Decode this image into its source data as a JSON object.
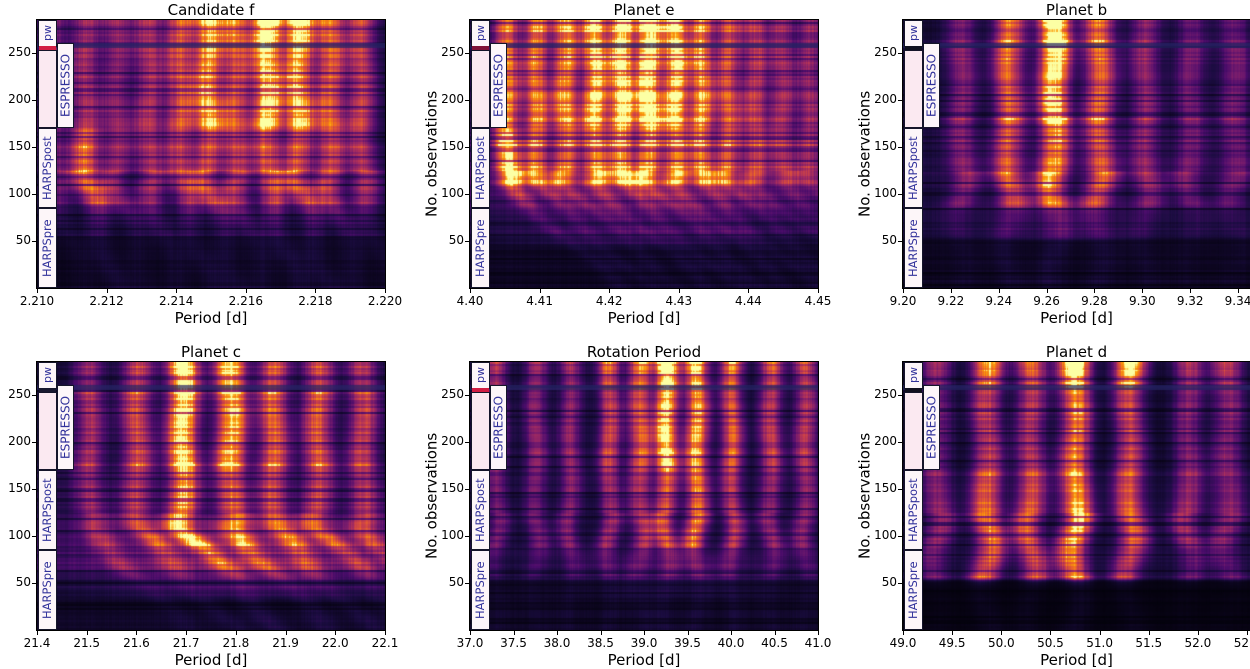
{
  "figure": {
    "ylabel": "No. observations",
    "xlabel": "Period [d]",
    "instrument_labels": [
      "HARPSpre",
      "HARPSpost",
      "ESPRESSO",
      "pw"
    ],
    "colors": {
      "axis_text": "#000000",
      "instrument_text": "#32329b",
      "inset_box_fill": "#fdf6f9",
      "inset_pink_fill": "#fbe9f1",
      "inset_border": "#15152a",
      "red_marker": "#d21e44",
      "divider_row_navy": "#242464",
      "colormap": "inferno"
    }
  },
  "chart_data": [
    {
      "type": "heatmap",
      "title": "Candidate f",
      "xlabel": "Period [d]",
      "ylabel": "No. observations",
      "xlim": [
        2.21,
        2.22
      ],
      "xticks": [
        "2.210",
        "2.212",
        "2.214",
        "2.216",
        "2.218",
        "2.220"
      ],
      "xtick_vals": [
        2.21,
        2.212,
        2.214,
        2.216,
        2.218,
        2.22
      ],
      "yticks": [
        50,
        100,
        150,
        200,
        250
      ],
      "ylim": [
        0,
        285
      ],
      "obs_zone_boundaries": [
        55,
        88,
        170,
        258
      ],
      "zone_base": [
        0.035,
        0.06,
        0.08,
        0.08,
        0.08
      ],
      "sigma": 0.00028,
      "stripes": [
        {
          "p": 2.2105,
          "a": [
            0.1,
            0.2,
            0.22,
            0.2
          ]
        },
        {
          "p": 2.2114,
          "a": [
            0.22,
            0.58,
            0.38,
            0.3
          ]
        },
        {
          "p": 2.2123,
          "a": [
            0.15,
            0.3,
            0.3,
            0.28
          ]
        },
        {
          "p": 2.2132,
          "a": [
            0.18,
            0.34,
            0.4,
            0.34
          ]
        },
        {
          "p": 2.2141,
          "a": [
            0.2,
            0.4,
            0.55,
            0.5
          ]
        },
        {
          "p": 2.2149,
          "a": [
            0.22,
            0.46,
            0.8,
            0.72
          ]
        },
        {
          "p": 2.2157,
          "a": [
            0.2,
            0.42,
            0.56,
            0.6
          ]
        },
        {
          "p": 2.2166,
          "a": [
            0.24,
            0.5,
            0.97,
            1.1
          ]
        },
        {
          "p": 2.2175,
          "a": [
            0.24,
            0.5,
            0.86,
            0.92
          ]
        },
        {
          "p": 2.2184,
          "a": [
            0.2,
            0.45,
            0.6,
            0.55
          ]
        },
        {
          "p": 2.2193,
          "a": [
            0.16,
            0.36,
            0.46,
            0.42
          ]
        }
      ],
      "fade": {
        "below": 80,
        "f": 0.6
      },
      "haze": null,
      "smear": 8e-06,
      "marker_color": "#d21e44",
      "seed": 11
    },
    {
      "type": "heatmap",
      "title": "Planet e",
      "xlabel": "Period [d]",
      "ylabel": "No. observations",
      "xlim": [
        4.4,
        4.45
      ],
      "xticks": [
        "4.40",
        "4.41",
        "4.42",
        "4.43",
        "4.44",
        "4.45"
      ],
      "xtick_vals": [
        4.4,
        4.41,
        4.42,
        4.43,
        4.44,
        4.45
      ],
      "yticks": [
        50,
        100,
        150,
        200,
        250
      ],
      "ylim": [
        0,
        285
      ],
      "obs_zone_boundaries": [
        55,
        88,
        170,
        258
      ],
      "zone_base": [
        0.05,
        0.11,
        0.16,
        0.1,
        0.1
      ],
      "sigma": 0.0012,
      "stripes": [
        {
          "p": 4.4053,
          "a": [
            0.3,
            0.85,
            0.62,
            0.55
          ]
        },
        {
          "p": 4.4095,
          "a": [
            0.28,
            0.6,
            0.66,
            0.62
          ]
        },
        {
          "p": 4.4137,
          "a": [
            0.28,
            0.6,
            0.76,
            0.72
          ]
        },
        {
          "p": 4.4179,
          "a": [
            0.32,
            0.66,
            0.9,
            0.86
          ]
        },
        {
          "p": 4.4218,
          "a": [
            0.32,
            0.7,
            1.0,
            0.96
          ]
        },
        {
          "p": 4.4256,
          "a": [
            0.32,
            0.7,
            1.06,
            1.02
          ]
        },
        {
          "p": 4.4294,
          "a": [
            0.32,
            0.66,
            0.95,
            0.9
          ]
        },
        {
          "p": 4.4332,
          "a": [
            0.28,
            0.6,
            0.72,
            0.62
          ]
        },
        {
          "p": 4.4371,
          "a": [
            0.24,
            0.5,
            0.52,
            0.46
          ]
        },
        {
          "p": 4.441,
          "a": [
            0.2,
            0.4,
            0.42,
            0.36
          ]
        },
        {
          "p": 4.4448,
          "a": [
            0.18,
            0.34,
            0.36,
            0.3
          ]
        },
        {
          "p": 4.4487,
          "a": [
            0.14,
            0.28,
            0.3,
            0.26
          ]
        }
      ],
      "fade": {
        "below": 115,
        "f": 0.4
      },
      "haze": {
        "p": 4.423,
        "sigma": 0.013,
        "amp": 0.16,
        "lo": 50,
        "hi": 120
      },
      "smear": 0.00015,
      "marker_color": "#801238",
      "seed": 23
    },
    {
      "type": "heatmap",
      "title": "Planet b",
      "xlabel": "Period [d]",
      "ylabel": "No. observations",
      "xlim": [
        9.2,
        9.345
      ],
      "xticks": [
        "9.20",
        "9.22",
        "9.24",
        "9.26",
        "9.28",
        "9.30",
        "9.32",
        "9.34"
      ],
      "xtick_vals": [
        9.2,
        9.22,
        9.24,
        9.26,
        9.28,
        9.3,
        9.32,
        9.34
      ],
      "yticks": [
        50,
        100,
        150,
        200,
        250
      ],
      "ylim": [
        0,
        285
      ],
      "obs_zone_boundaries": [
        55,
        88,
        170,
        258
      ],
      "zone_base": [
        0.04,
        0.09,
        0.1,
        0.07,
        0.07
      ],
      "sigma": 0.0042,
      "stripes": [
        {
          "p": 9.2245,
          "a": [
            0.14,
            0.28,
            0.3,
            0.24
          ]
        },
        {
          "p": 9.244,
          "a": [
            0.22,
            0.55,
            0.62,
            0.62
          ]
        },
        {
          "p": 9.263,
          "a": [
            0.28,
            0.75,
            1.02,
            1.12
          ]
        },
        {
          "p": 9.282,
          "a": [
            0.22,
            0.55,
            0.62,
            0.62
          ]
        },
        {
          "p": 9.301,
          "a": [
            0.14,
            0.3,
            0.32,
            0.28
          ]
        },
        {
          "p": 9.32,
          "a": [
            0.1,
            0.24,
            0.26,
            0.2
          ]
        },
        {
          "p": 9.3385,
          "a": [
            0.1,
            0.22,
            0.26,
            0.2
          ]
        }
      ],
      "fade": {
        "below": 90,
        "f": 0.5
      },
      "haze": {
        "p": 9.265,
        "sigma": 0.02,
        "amp": 0.1,
        "lo": 55,
        "hi": 95
      },
      "smear": 0,
      "marker_color": "#10101e",
      "seed": 37
    },
    {
      "type": "heatmap",
      "title": "Planet c",
      "xlabel": "Period [d]",
      "ylabel": "No. observations",
      "xlim": [
        21.4,
        22.1
      ],
      "xticks": [
        "21.4",
        "21.5",
        "21.6",
        "21.7",
        "21.8",
        "21.9",
        "22.0",
        "22.1"
      ],
      "xtick_vals": [
        21.4,
        21.5,
        21.6,
        21.7,
        21.8,
        21.9,
        22.0,
        22.1
      ],
      "yticks": [
        50,
        100,
        150,
        200,
        250
      ],
      "ylim": [
        0,
        285
      ],
      "obs_zone_boundaries": [
        55,
        88,
        170,
        258
      ],
      "zone_base": [
        0.06,
        0.12,
        0.13,
        0.08,
        0.08
      ],
      "sigma": 0.02,
      "stripes": [
        {
          "p": 21.505,
          "a": [
            0.18,
            0.3,
            0.36,
            0.3
          ]
        },
        {
          "p": 21.6,
          "a": [
            0.22,
            0.4,
            0.5,
            0.45
          ]
        },
        {
          "p": 21.693,
          "a": [
            0.35,
            0.78,
            1.0,
            1.12
          ]
        },
        {
          "p": 21.79,
          "a": [
            0.3,
            0.58,
            0.86,
            0.94
          ]
        },
        {
          "p": 21.875,
          "a": [
            0.26,
            0.48,
            0.6,
            0.55
          ]
        },
        {
          "p": 21.965,
          "a": [
            0.25,
            0.44,
            0.56,
            0.5
          ]
        },
        {
          "p": 22.055,
          "a": [
            0.22,
            0.38,
            0.46,
            0.4
          ]
        }
      ],
      "fade": {
        "below": 62,
        "f": 0.55
      },
      "haze": {
        "p": 21.82,
        "sigma": 0.22,
        "amp": 0.18,
        "lo": 40,
        "hi": 118
      },
      "smear": 0.0018,
      "marker_color": "#191930",
      "seed": 51
    },
    {
      "type": "heatmap",
      "title": "Rotation Period",
      "xlabel": "Period [d]",
      "ylabel": "No. observations",
      "xlim": [
        37.0,
        41.0
      ],
      "xticks": [
        "37.0",
        "37.5",
        "38.0",
        "38.5",
        "39.0",
        "39.5",
        "40.0",
        "40.5",
        "41.0"
      ],
      "xtick_vals": [
        37.0,
        37.5,
        38.0,
        38.5,
        39.0,
        39.5,
        40.0,
        40.5,
        41.0
      ],
      "yticks": [
        50,
        100,
        150,
        200,
        250
      ],
      "ylim": [
        0,
        285
      ],
      "obs_zone_boundaries": [
        55,
        88,
        170,
        258
      ],
      "zone_base": [
        0.05,
        0.09,
        0.08,
        0.07,
        0.07
      ],
      "sigma": 0.085,
      "stripes": [
        {
          "p": 37.3,
          "a": [
            0.12,
            0.24,
            0.3,
            0.35
          ]
        },
        {
          "p": 37.75,
          "a": [
            0.12,
            0.24,
            0.3,
            0.3
          ]
        },
        {
          "p": 38.15,
          "a": [
            0.14,
            0.28,
            0.3,
            0.3
          ]
        },
        {
          "p": 38.6,
          "a": [
            0.16,
            0.34,
            0.46,
            0.52
          ]
        },
        {
          "p": 38.95,
          "a": [
            0.18,
            0.4,
            0.56,
            0.62
          ]
        },
        {
          "p": 39.25,
          "a": [
            0.22,
            0.55,
            0.92,
            1.08
          ]
        },
        {
          "p": 39.6,
          "a": [
            0.22,
            0.66,
            0.76,
            0.82
          ]
        },
        {
          "p": 40.0,
          "a": [
            0.18,
            0.4,
            0.52,
            0.56
          ]
        },
        {
          "p": 40.45,
          "a": [
            0.14,
            0.3,
            0.42,
            0.46
          ]
        },
        {
          "p": 40.85,
          "a": [
            0.14,
            0.3,
            0.4,
            0.42
          ]
        }
      ],
      "fade": {
        "below": 62,
        "f": 0.5
      },
      "haze": {
        "p": 39.4,
        "sigma": 0.9,
        "amp": 0.08,
        "lo": 40,
        "hi": 75
      },
      "smear": 0,
      "marker_color": "#d21e44",
      "seed": 67
    },
    {
      "type": "heatmap",
      "title": "Planet d",
      "xlabel": "Period [d]",
      "ylabel": "No. observations",
      "xlim": [
        49.0,
        52.53
      ],
      "xticks": [
        "49.0",
        "49.5",
        "50.0",
        "50.5",
        "51.0",
        "51.5",
        "52.0",
        "52.5"
      ],
      "xtick_vals": [
        49.0,
        49.5,
        50.0,
        50.5,
        51.0,
        51.5,
        52.0,
        52.5
      ],
      "yticks": [
        50,
        100,
        150,
        200,
        250
      ],
      "ylim": [
        0,
        285
      ],
      "obs_zone_boundaries": [
        55,
        88,
        170,
        258
      ],
      "zone_base": [
        0.02,
        0.09,
        0.08,
        0.06,
        0.06
      ],
      "sigma": 0.1,
      "stripes": [
        {
          "p": 49.35,
          "a": [
            0.2,
            0.3,
            0.24,
            0.32
          ]
        },
        {
          "p": 49.85,
          "a": [
            0.55,
            0.62,
            0.48,
            0.72
          ]
        },
        {
          "p": 50.3,
          "a": [
            0.48,
            0.55,
            0.44,
            0.56
          ]
        },
        {
          "p": 50.75,
          "a": [
            0.68,
            0.8,
            0.72,
            1.1
          ]
        },
        {
          "p": 51.3,
          "a": [
            0.42,
            0.56,
            0.5,
            0.88
          ]
        },
        {
          "p": 51.9,
          "a": [
            0.18,
            0.34,
            0.3,
            0.36
          ]
        },
        {
          "p": 52.3,
          "a": [
            0.18,
            0.3,
            0.32,
            0.42
          ]
        }
      ],
      "fade": {
        "below": 58,
        "f": 0.15
      },
      "haze": null,
      "smear": 0,
      "marker_color": "#10101e",
      "seed": 83
    }
  ]
}
